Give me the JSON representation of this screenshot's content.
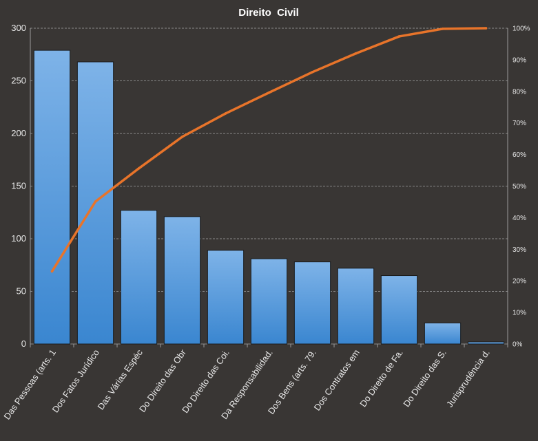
{
  "chart_data": {
    "type": "bar",
    "title": "Direito  Civil",
    "categories": [
      "Das Pessoas (arts. 1",
      "Dos Fatos Jurídico",
      "Das Várias Espéc",
      "Do Direito das Obr",
      "Do Direito das Coi.",
      "Da Responsabilidad.",
      "Dos Bens (arts. 79.",
      "Dos Contratos em",
      "Do Direito de Fa.",
      "Do Direito das S.",
      "Jurisprudência d."
    ],
    "series": [
      {
        "type": "bar",
        "axis": "left",
        "color": "#4a90d6",
        "values": [
          279,
          268,
          127,
          121,
          89,
          81,
          78,
          72,
          65,
          20,
          2
        ]
      },
      {
        "type": "line",
        "axis": "right",
        "color": "#e8742a",
        "values": [
          23.0,
          45.1,
          55.6,
          65.6,
          73.0,
          79.6,
          86.1,
          92.0,
          97.4,
          99.8,
          100
        ]
      }
    ],
    "y_left": {
      "min": 0,
      "max": 300,
      "ticks": [
        0,
        50,
        100,
        150,
        200,
        250,
        300
      ]
    },
    "y_right": {
      "min": 0,
      "max": 100,
      "ticks": [
        0,
        10,
        20,
        30,
        40,
        50,
        60,
        70,
        80,
        90,
        100
      ],
      "format": "percent"
    },
    "xlabel": "",
    "ylabel": "",
    "grid": true,
    "legend": "none",
    "colors": {
      "background": "#393634",
      "bar": "#4a90d6",
      "line": "#e8742a",
      "grid": "#8a8a8a",
      "text": "#e8e8e8"
    }
  }
}
